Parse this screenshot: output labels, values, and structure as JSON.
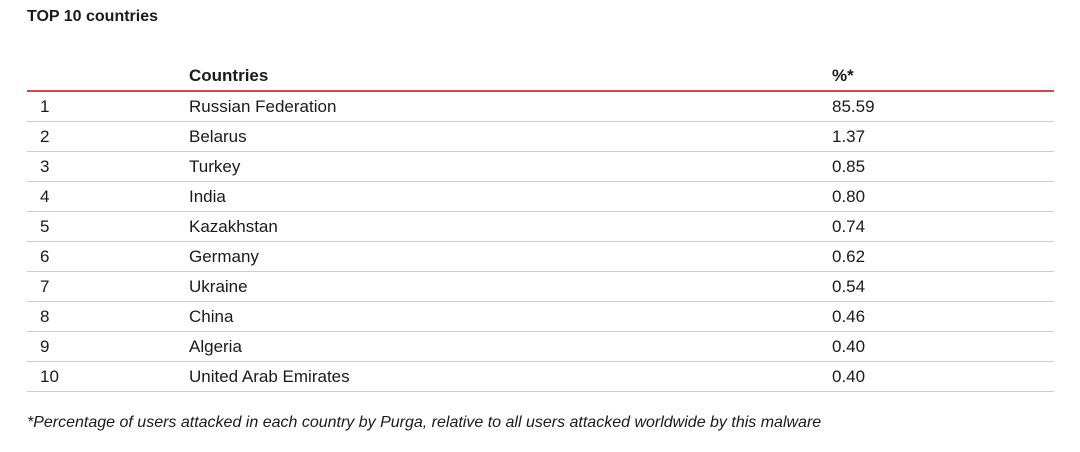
{
  "title": "TOP 10 countries",
  "table": {
    "headers": {
      "rank": "",
      "country": "Countries",
      "percent": "%*"
    },
    "rows": [
      {
        "rank": "1",
        "country": "Russian Federation",
        "percent": "85.59"
      },
      {
        "rank": "2",
        "country": "Belarus",
        "percent": "1.37"
      },
      {
        "rank": "3",
        "country": "Turkey",
        "percent": "0.85"
      },
      {
        "rank": "4",
        "country": "India",
        "percent": "0.80"
      },
      {
        "rank": "5",
        "country": "Kazakhstan",
        "percent": "0.74"
      },
      {
        "rank": "6",
        "country": "Germany",
        "percent": "0.62"
      },
      {
        "rank": "7",
        "country": "Ukraine",
        "percent": "0.54"
      },
      {
        "rank": "8",
        "country": "China",
        "percent": "0.46"
      },
      {
        "rank": "9",
        "country": "Algeria",
        "percent": "0.40"
      },
      {
        "rank": "10",
        "country": "United Arab Emirates",
        "percent": "0.40"
      }
    ]
  },
  "footnote": "*Percentage of users attacked in each country by Purga, relative to all users attacked worldwide by this malware",
  "colors": {
    "header_rule": "#d9434f",
    "row_rule": "#b9d6e0"
  }
}
